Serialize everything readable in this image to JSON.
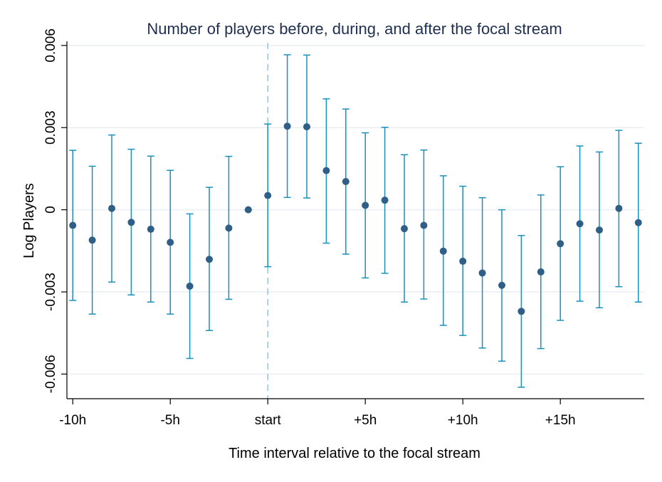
{
  "chart_data": {
    "type": "scatter",
    "title": "Number of players before, during, and after the focal stream",
    "xlabel": "Time interval relative to the focal stream",
    "ylabel": "Log Players",
    "xlim": [
      -10.3,
      19.3
    ],
    "ylim": [
      -0.0069,
      0.0061
    ],
    "grid": true,
    "reference_line_x": 0,
    "x_ticks": [
      {
        "value": -10,
        "label": "-10h"
      },
      {
        "value": -5,
        "label": "-5h"
      },
      {
        "value": 0,
        "label": "start"
      },
      {
        "value": 5,
        "label": "+5h"
      },
      {
        "value": 10,
        "label": "+10h"
      },
      {
        "value": 15,
        "label": "+15h"
      }
    ],
    "y_ticks": [
      {
        "value": 0.006,
        "label": "0.006"
      },
      {
        "value": 0.003,
        "label": "0.003"
      },
      {
        "value": 0,
        "label": "0"
      },
      {
        "value": -0.003,
        "label": "-0.003"
      },
      {
        "value": -0.006,
        "label": "-0.006"
      }
    ],
    "x": [
      -10,
      -9,
      -8,
      -7,
      -6,
      -5,
      -4,
      -3,
      -2,
      -1,
      0,
      1,
      2,
      3,
      4,
      5,
      6,
      7,
      8,
      9,
      10,
      11,
      12,
      13,
      14,
      15,
      16,
      17,
      18,
      19
    ],
    "estimate": [
      -0.00057,
      -0.00111,
      5e-05,
      -0.00046,
      -0.00071,
      -0.00119,
      -0.00279,
      -0.00181,
      -0.00067,
      0.0,
      0.00052,
      0.00305,
      0.00303,
      0.00143,
      0.00103,
      0.00016,
      0.00035,
      -0.00069,
      -0.00057,
      -0.00151,
      -0.00188,
      -0.00231,
      -0.00276,
      -0.00371,
      -0.00227,
      -0.00124,
      -0.00051,
      -0.00074,
      5e-05,
      -0.00047
    ],
    "ci_low": [
      -0.00331,
      -0.00381,
      -0.00264,
      -0.00311,
      -0.00337,
      -0.00381,
      -0.00543,
      -0.00441,
      -0.00327,
      0.0,
      -0.00208,
      0.00045,
      0.00043,
      -0.00122,
      -0.00162,
      -0.00249,
      -0.00232,
      -0.00337,
      -0.00326,
      -0.00422,
      -0.00459,
      -0.00505,
      -0.00553,
      -0.00648,
      -0.00507,
      -0.00404,
      -0.00334,
      -0.00358,
      -0.00281,
      -0.00337
    ],
    "ci_high": [
      0.00217,
      0.00159,
      0.00273,
      0.00221,
      0.00196,
      0.00144,
      -0.00015,
      0.00082,
      0.00195,
      0.0,
      0.00313,
      0.00566,
      0.00565,
      0.00405,
      0.00368,
      0.00281,
      0.00301,
      0.00201,
      0.00218,
      0.00124,
      0.00086,
      0.00044,
      0.0,
      -0.00094,
      0.00054,
      0.00157,
      0.00233,
      0.00211,
      0.0029,
      0.00243
    ]
  },
  "colors": {
    "marker": "#2f5f86",
    "errorbar": "#1a90bd",
    "grid": "#e8eef2",
    "axis": "#000000",
    "reference_line": "#8fb8d4",
    "title": "#1e2f50"
  }
}
